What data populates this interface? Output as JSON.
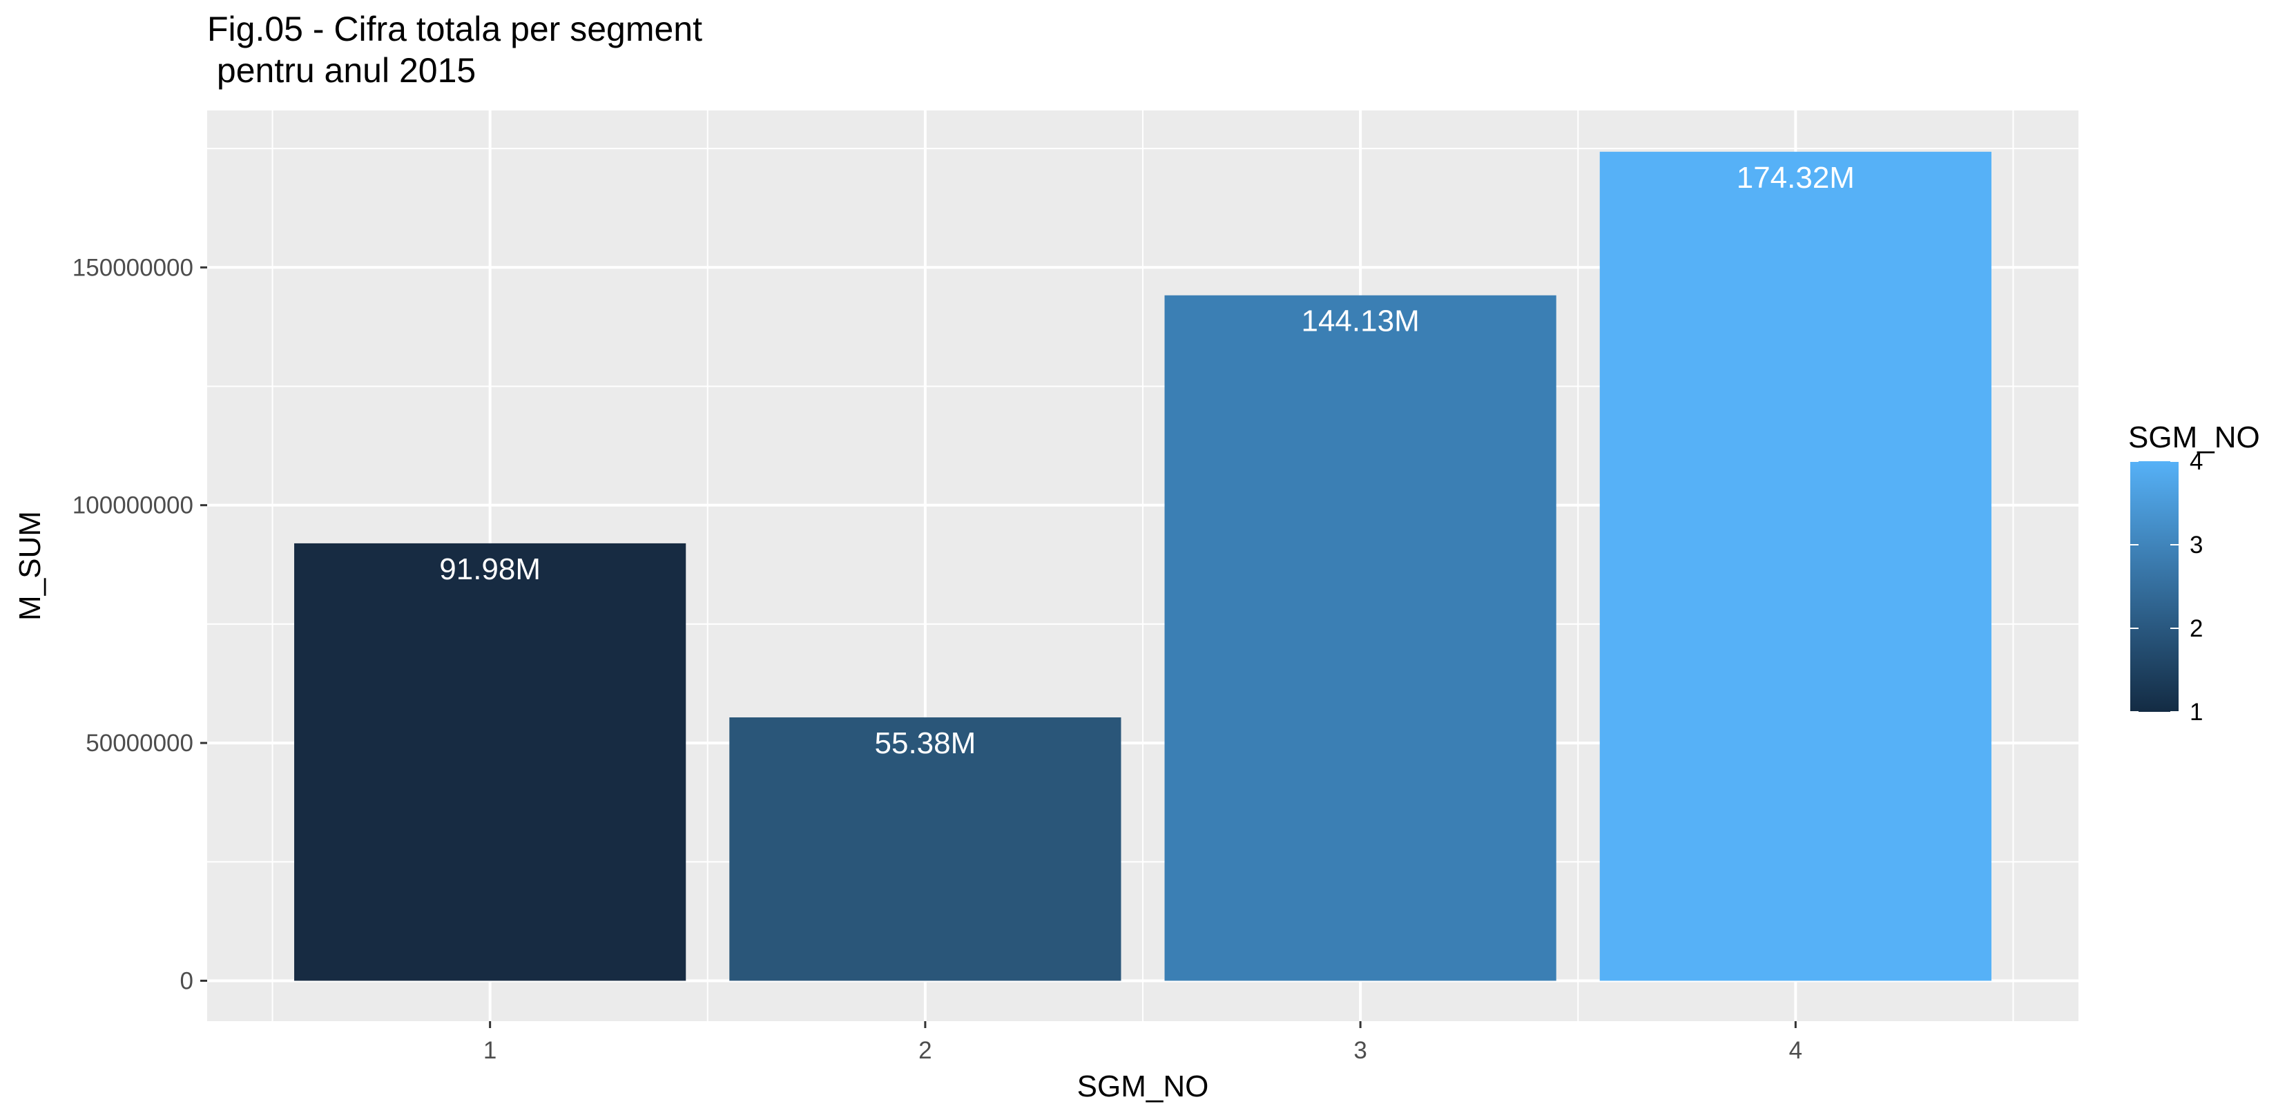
{
  "chart_data": {
    "type": "bar",
    "title": "Fig.05 - Cifra totala per segment\n pentru anul 2015",
    "xlabel": "SGM_NO",
    "ylabel": "M_SUM",
    "categories": [
      "1",
      "2",
      "3",
      "4"
    ],
    "values": [
      91980000,
      55380000,
      144130000,
      174320000
    ],
    "data_labels": [
      "91.98M",
      "55.38M",
      "144.13M",
      "174.32M"
    ],
    "bar_colors": [
      "#172B42",
      "#2A5679",
      "#3B7FB4",
      "#56B1F7"
    ],
    "ylim": [
      -8500000,
      183000000
    ],
    "yticks": [
      0,
      50000000,
      100000000,
      150000000
    ],
    "ytick_labels": [
      "0",
      "50000000",
      "100000000",
      "150000000"
    ],
    "xlim": [
      0.35,
      4.65
    ],
    "grid": true,
    "panel_background": "#EBEBEB",
    "legend": {
      "title": "SGM_NO",
      "type": "colorbar",
      "position": "right",
      "range": [
        1,
        4
      ],
      "labels": [
        "1",
        "2",
        "3",
        "4"
      ],
      "low_color": "#132B43",
      "high_color": "#56B1F7"
    }
  }
}
